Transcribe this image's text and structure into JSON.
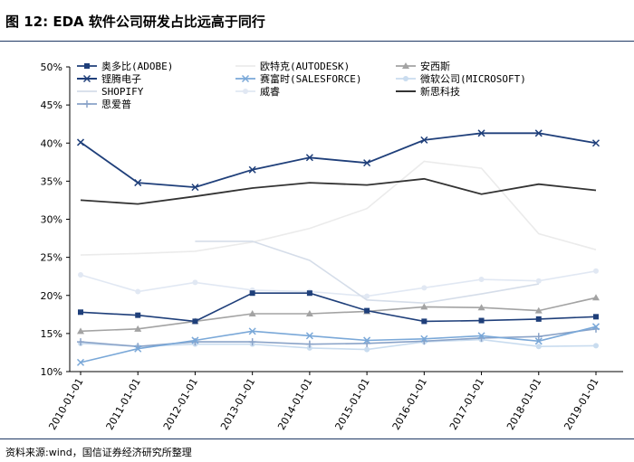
{
  "chart_data": {
    "type": "line",
    "title": "图 12:  EDA 软件公司研发占比远高于同行",
    "source": "资料来源:wind，国信证券经济研究所整理",
    "categories": [
      "2010-01-01",
      "2011-01-01",
      "2012-01-01",
      "2013-01-01",
      "2014-01-01",
      "2015-01-01",
      "2016-01-01",
      "2017-01-01",
      "2018-01-01",
      "2019-01-01"
    ],
    "ylim": [
      10,
      50
    ],
    "yticks": [
      "10%",
      "15%",
      "20%",
      "25%",
      "30%",
      "35%",
      "40%",
      "45%",
      "50%"
    ],
    "series": [
      {
        "name": "奥多比(ADOBE)",
        "color": "#1f3f7a",
        "marker": "square",
        "values": [
          17.8,
          17.4,
          16.6,
          20.3,
          20.3,
          18.0,
          16.6,
          16.7,
          16.9,
          17.2
        ]
      },
      {
        "name": "欧特克(AUTODESK)",
        "color": "#ebebeb",
        "marker": "none",
        "values": [
          25.3,
          25.5,
          25.8,
          27.0,
          28.8,
          31.4,
          37.6,
          36.7,
          28.1,
          26.0
        ]
      },
      {
        "name": "安西斯",
        "color": "#a3a3a3",
        "marker": "triangle",
        "values": [
          15.3,
          15.6,
          16.6,
          17.6,
          17.6,
          17.9,
          18.5,
          18.4,
          18.0,
          19.7
        ]
      },
      {
        "name": "铿腾电子",
        "color": "#1f3f7a",
        "marker": "x",
        "values": [
          40.1,
          34.8,
          34.2,
          36.5,
          38.1,
          37.4,
          40.4,
          41.3,
          41.3,
          40.0
        ]
      },
      {
        "name": "赛富时(SALESFORCE)",
        "color": "#7aa8d8",
        "marker": "x",
        "values": [
          11.2,
          13.0,
          14.1,
          15.3,
          14.7,
          14.1,
          14.3,
          14.7,
          14.0,
          15.9
        ]
      },
      {
        "name": "微软公司(MICROSOFT)",
        "color": "#c9dcef",
        "marker": "circle",
        "values": [
          13.7,
          13.3,
          13.6,
          13.6,
          13.1,
          12.9,
          13.9,
          14.2,
          13.3,
          13.4
        ]
      },
      {
        "name": "新思科技",
        "color": "#333333",
        "marker": "none",
        "values": [
          32.5,
          32.0,
          33.0,
          34.1,
          34.8,
          34.5,
          35.3,
          33.3,
          34.6,
          33.8
        ]
      },
      {
        "name": "思爱普",
        "color": "#8aa3c8",
        "marker": "plus",
        "values": [
          13.9,
          13.3,
          13.9,
          13.9,
          13.6,
          13.7,
          14.0,
          14.4,
          14.6,
          15.6
        ]
      },
      {
        "name": "SHOPIFY",
        "color": "#d5dde9",
        "marker": "none",
        "values": [
          null,
          null,
          27.1,
          27.1,
          24.6,
          19.4,
          19.0,
          20.2,
          21.5,
          null
        ]
      },
      {
        "name": "威睿",
        "color": "#e1e8f3",
        "marker": "circle",
        "values": [
          22.7,
          20.5,
          21.7,
          20.7,
          20.5,
          19.9,
          21.0,
          22.1,
          21.9,
          23.2
        ]
      }
    ]
  }
}
